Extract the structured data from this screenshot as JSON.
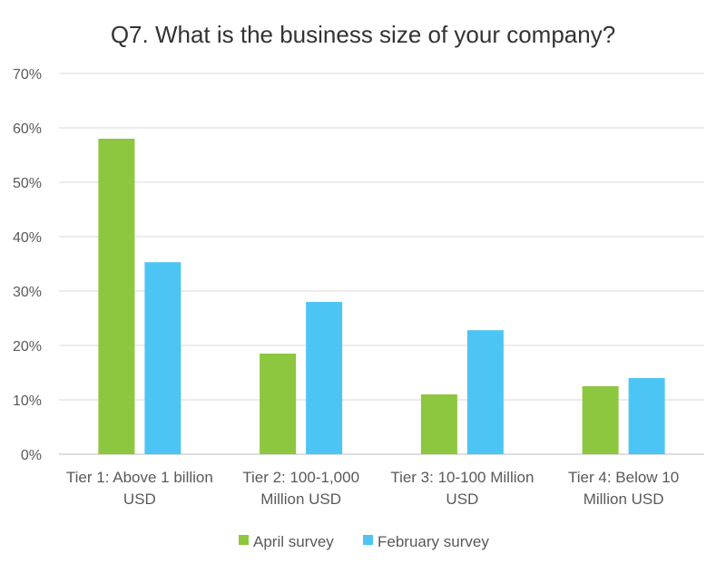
{
  "chart_data": {
    "type": "bar",
    "title": "Q7. What is the business size of your company?",
    "categories": [
      [
        "Tier 1: Above 1 billion",
        "USD"
      ],
      [
        "Tier 2: 100-1,000",
        "Million USD"
      ],
      [
        "Tier 3: 10-100 Million",
        "USD"
      ],
      [
        "Tier 4: Below 10",
        "Million USD"
      ]
    ],
    "series": [
      {
        "name": "April survey",
        "values": [
          58,
          18.5,
          11,
          12.5
        ],
        "color": "#8dc63f"
      },
      {
        "name": "February survey",
        "values": [
          35.3,
          28,
          22.8,
          14
        ],
        "color": "#4cc5f5"
      }
    ],
    "ylim": [
      0,
      70
    ],
    "yticks": [
      "0%",
      "10%",
      "20%",
      "30%",
      "40%",
      "50%",
      "60%",
      "70%"
    ],
    "y_unit": "%",
    "grid": true,
    "legend_position": "bottom"
  }
}
